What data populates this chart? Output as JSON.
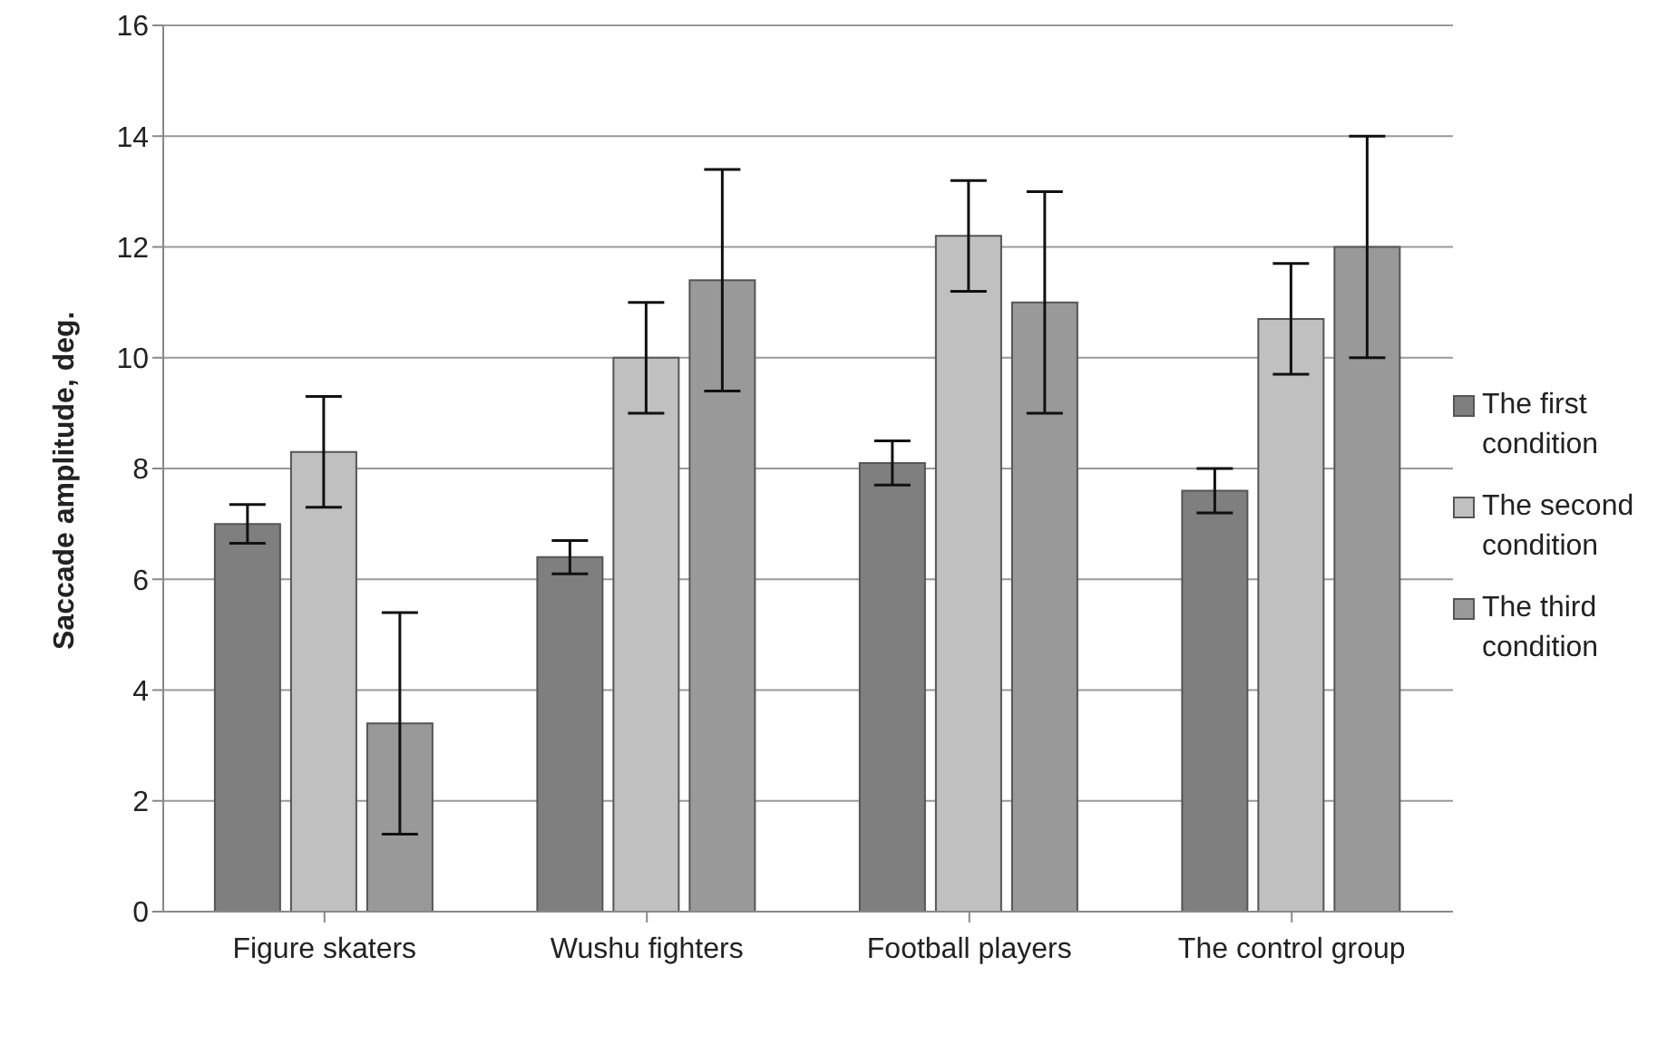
{
  "chart_data": {
    "type": "bar",
    "ylabel": "Saccade amplitude, deg.",
    "categories": [
      "Figure skaters",
      "Wushu fighters",
      "Football players",
      "The control group"
    ],
    "series": [
      {
        "name": "The first condition",
        "color": "#7f7f7f",
        "values": [
          7.0,
          6.4,
          8.1,
          7.6
        ],
        "errors": [
          0.35,
          0.3,
          0.4,
          0.4
        ]
      },
      {
        "name": "The second condition",
        "color": "#c0c0c0",
        "values": [
          8.3,
          10.0,
          12.2,
          10.7
        ],
        "errors": [
          1.0,
          1.0,
          1.0,
          1.0
        ]
      },
      {
        "name": "The third condition",
        "color": "#999999",
        "values": [
          3.4,
          11.4,
          11.0,
          12.0
        ],
        "errors": [
          2.0,
          2.0,
          2.0,
          2.0
        ]
      }
    ],
    "ylim": [
      0,
      16
    ],
    "yticks": [
      0,
      2,
      4,
      6,
      8,
      10,
      12,
      14,
      16
    ],
    "grid": "y",
    "legend": "right"
  }
}
